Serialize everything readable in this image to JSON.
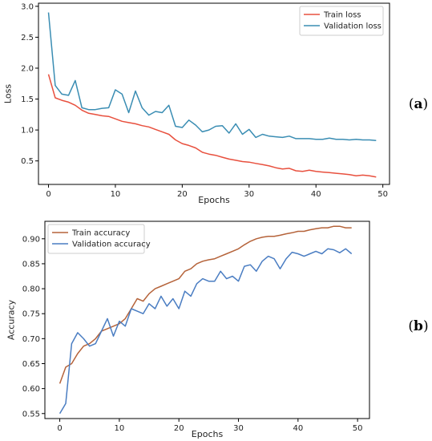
{
  "chart_data": [
    {
      "type": "line",
      "panel_label": "a",
      "xlabel": "Epochs",
      "ylabel": "Loss",
      "xlim": [
        -1.5,
        51
      ],
      "ylim": [
        0.12,
        3.05
      ],
      "xticks": [
        0,
        10,
        20,
        30,
        40,
        50
      ],
      "yticks": [
        0.5,
        1.0,
        1.5,
        2.0,
        2.5,
        3.0
      ],
      "ytick_labels": [
        "0.5",
        "1.0",
        "1.5",
        "2.0",
        "2.5",
        "3.0"
      ],
      "grid": false,
      "legend_position": "top-right",
      "x": [
        0,
        1,
        2,
        3,
        4,
        5,
        6,
        7,
        8,
        9,
        10,
        11,
        12,
        13,
        14,
        15,
        16,
        17,
        18,
        19,
        20,
        21,
        22,
        23,
        24,
        25,
        26,
        27,
        28,
        29,
        30,
        31,
        32,
        33,
        34,
        35,
        36,
        37,
        38,
        39,
        40,
        41,
        42,
        43,
        44,
        45,
        46,
        47,
        48,
        49
      ],
      "series": [
        {
          "name": "Train loss",
          "color": "#e8503e",
          "values": [
            1.9,
            1.52,
            1.48,
            1.45,
            1.4,
            1.32,
            1.27,
            1.25,
            1.23,
            1.22,
            1.18,
            1.14,
            1.12,
            1.1,
            1.07,
            1.05,
            1.01,
            0.97,
            0.93,
            0.84,
            0.78,
            0.75,
            0.71,
            0.64,
            0.61,
            0.59,
            0.56,
            0.53,
            0.51,
            0.49,
            0.48,
            0.46,
            0.44,
            0.42,
            0.39,
            0.37,
            0.38,
            0.34,
            0.33,
            0.35,
            0.33,
            0.32,
            0.31,
            0.3,
            0.29,
            0.28,
            0.26,
            0.27,
            0.26,
            0.24
          ]
        },
        {
          "name": "Validation loss",
          "color": "#3a8db3",
          "values": [
            2.9,
            1.72,
            1.58,
            1.56,
            1.8,
            1.36,
            1.33,
            1.33,
            1.35,
            1.36,
            1.65,
            1.58,
            1.28,
            1.63,
            1.36,
            1.24,
            1.3,
            1.28,
            1.4,
            1.06,
            1.04,
            1.16,
            1.08,
            0.97,
            1.0,
            1.06,
            1.07,
            0.95,
            1.1,
            0.93,
            1.01,
            0.88,
            0.93,
            0.9,
            0.89,
            0.88,
            0.9,
            0.86,
            0.86,
            0.86,
            0.85,
            0.85,
            0.87,
            0.85,
            0.85,
            0.84,
            0.85,
            0.84,
            0.84,
            0.83
          ]
        }
      ]
    },
    {
      "type": "line",
      "panel_label": "b",
      "xlabel": "Epochs",
      "ylabel": "Accuracy",
      "xlim": [
        -2.5,
        52
      ],
      "ylim": [
        0.54,
        0.935
      ],
      "xticks": [
        0,
        10,
        20,
        30,
        40,
        50
      ],
      "yticks": [
        0.55,
        0.6,
        0.65,
        0.7,
        0.75,
        0.8,
        0.85,
        0.9
      ],
      "ytick_labels": [
        "0.55",
        "0.60",
        "0.65",
        "0.70",
        "0.75",
        "0.80",
        "0.85",
        "0.90"
      ],
      "grid": false,
      "legend_position": "top-left",
      "x": [
        0,
        1,
        2,
        3,
        4,
        5,
        6,
        7,
        8,
        9,
        10,
        11,
        12,
        13,
        14,
        15,
        16,
        17,
        18,
        19,
        20,
        21,
        22,
        23,
        24,
        25,
        26,
        27,
        28,
        29,
        30,
        31,
        32,
        33,
        34,
        35,
        36,
        37,
        38,
        39,
        40,
        41,
        42,
        43,
        44,
        45,
        46,
        47,
        48,
        49
      ],
      "series": [
        {
          "name": "Train accuracy",
          "color": "#b5633a",
          "values": [
            0.61,
            0.643,
            0.65,
            0.67,
            0.685,
            0.69,
            0.7,
            0.715,
            0.72,
            0.725,
            0.73,
            0.74,
            0.76,
            0.78,
            0.775,
            0.79,
            0.8,
            0.805,
            0.81,
            0.815,
            0.82,
            0.835,
            0.84,
            0.85,
            0.855,
            0.858,
            0.86,
            0.865,
            0.87,
            0.875,
            0.88,
            0.888,
            0.895,
            0.9,
            0.903,
            0.905,
            0.905,
            0.907,
            0.91,
            0.912,
            0.915,
            0.915,
            0.918,
            0.92,
            0.922,
            0.922,
            0.925,
            0.925,
            0.922,
            0.922
          ]
        },
        {
          "name": "Validation accuracy",
          "color": "#4a7dc2",
          "values": [
            0.55,
            0.57,
            0.69,
            0.712,
            0.7,
            0.685,
            0.69,
            0.715,
            0.74,
            0.705,
            0.735,
            0.725,
            0.76,
            0.755,
            0.75,
            0.77,
            0.76,
            0.785,
            0.765,
            0.78,
            0.76,
            0.795,
            0.785,
            0.81,
            0.82,
            0.815,
            0.815,
            0.835,
            0.82,
            0.825,
            0.815,
            0.845,
            0.848,
            0.835,
            0.855,
            0.865,
            0.86,
            0.84,
            0.86,
            0.873,
            0.87,
            0.865,
            0.87,
            0.875,
            0.87,
            0.88,
            0.878,
            0.872,
            0.88,
            0.87
          ]
        }
      ]
    }
  ]
}
